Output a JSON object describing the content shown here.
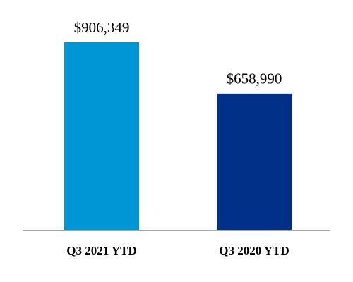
{
  "chart_data": {
    "type": "bar",
    "categories": [
      "Q3 2021 YTD",
      "Q3 2020 YTD"
    ],
    "values": [
      906349,
      658990
    ],
    "value_labels": [
      "$906,349",
      "$658,990"
    ],
    "colors": [
      "#0096d6",
      "#003087"
    ]
  }
}
